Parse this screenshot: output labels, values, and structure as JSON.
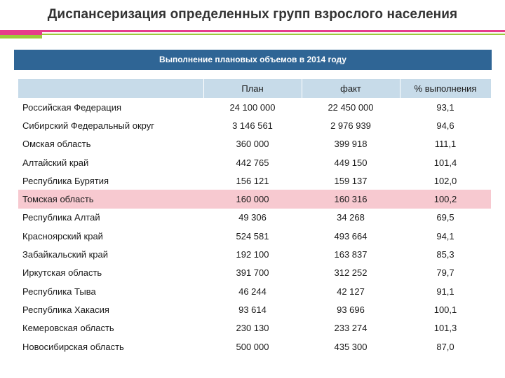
{
  "title": "Диспансеризация определенных групп взрослого населения",
  "banner": "Выполнение плановых объемов в 2014 году",
  "colors": {
    "banner_bg": "#2f6595",
    "header_bg": "#c7dbe9",
    "highlight_row": "#f7c9d0",
    "accent_pink": "#e63b8b",
    "accent_green": "#9cc93a"
  },
  "table": {
    "headers": [
      "",
      "План",
      "факт",
      "% выполнения"
    ],
    "rows": [
      {
        "name": "Российская Федерация",
        "plan": "24 100 000",
        "fact": "22 450 000",
        "pct": "93,1",
        "highlight": false
      },
      {
        "name": "Сибирский Федеральный округ",
        "plan": "3 146 561",
        "fact": "2 976 939",
        "pct": "94,6",
        "highlight": false
      },
      {
        "name": "Омская область",
        "plan": "360 000",
        "fact": "399 918",
        "pct": "111,1",
        "highlight": false
      },
      {
        "name": "Алтайский край",
        "plan": "442 765",
        "fact": "449 150",
        "pct": "101,4",
        "highlight": false
      },
      {
        "name": "Республика Бурятия",
        "plan": "156 121",
        "fact": "159 137",
        "pct": "102,0",
        "highlight": false
      },
      {
        "name": "Томская область",
        "plan": "160 000",
        "fact": "160 316",
        "pct": "100,2",
        "highlight": true
      },
      {
        "name": "Республика Алтай",
        "plan": "49 306",
        "fact": "34 268",
        "pct": "69,5",
        "highlight": false
      },
      {
        "name": "Красноярский край",
        "plan": "524 581",
        "fact": "493 664",
        "pct": "94,1",
        "highlight": false
      },
      {
        "name": "Забайкальский край",
        "plan": "192 100",
        "fact": "163 837",
        "pct": "85,3",
        "highlight": false
      },
      {
        "name": "Иркутская область",
        "plan": "391 700",
        "fact": "312 252",
        "pct": "79,7",
        "highlight": false
      },
      {
        "name": "Республика Тыва",
        "plan": "46 244",
        "fact": "42 127",
        "pct": "91,1",
        "highlight": false
      },
      {
        "name": "Республика Хакасия",
        "plan": "93 614",
        "fact": "93 696",
        "pct": "100,1",
        "highlight": false
      },
      {
        "name": "Кемеровская область",
        "plan": "230 130",
        "fact": "233 274",
        "pct": "101,3",
        "highlight": false
      },
      {
        "name": "Новосибирская область",
        "plan": "500 000",
        "fact": "435 300",
        "pct": "87,0",
        "highlight": false
      }
    ]
  }
}
